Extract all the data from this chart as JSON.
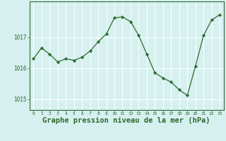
{
  "x": [
    0,
    1,
    2,
    3,
    4,
    5,
    6,
    7,
    8,
    9,
    10,
    11,
    12,
    13,
    14,
    15,
    16,
    17,
    18,
    19,
    20,
    21,
    22,
    23
  ],
  "y": [
    1016.3,
    1016.65,
    1016.45,
    1016.2,
    1016.3,
    1016.25,
    1016.35,
    1016.55,
    1016.85,
    1017.1,
    1017.62,
    1017.65,
    1017.5,
    1017.05,
    1016.45,
    1015.85,
    1015.68,
    1015.55,
    1015.3,
    1015.12,
    1016.05,
    1017.05,
    1017.55,
    1017.72
  ],
  "line_color": "#2d6a2d",
  "marker": "D",
  "marker_size": 2.2,
  "bg_color": "#d6f0f0",
  "grid_color": "#ffffff",
  "axis_color": "#2d6a2d",
  "xlabel": "Graphe pression niveau de la mer (hPa)",
  "xlabel_fontsize": 7.5,
  "yticks": [
    1015,
    1016,
    1017
  ],
  "ylim": [
    1014.65,
    1018.15
  ],
  "xlim": [
    -0.5,
    23.5
  ],
  "xticks": [
    0,
    1,
    2,
    3,
    4,
    5,
    6,
    7,
    8,
    9,
    10,
    11,
    12,
    13,
    14,
    15,
    16,
    17,
    18,
    19,
    20,
    21,
    22,
    23
  ]
}
